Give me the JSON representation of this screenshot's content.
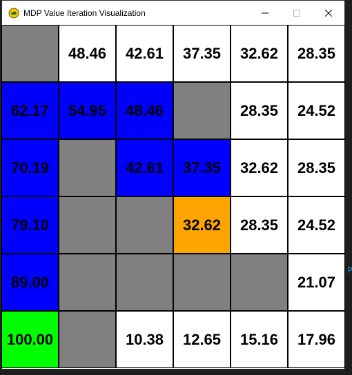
{
  "window": {
    "title": "MDP Value Iteration Visualization",
    "icon": "python-snake-icon"
  },
  "caption_buttons": [
    "minimize",
    "maximize",
    "close"
  ],
  "colors": {
    "wall": "#808080",
    "empty": "#ffffff",
    "path": "#0000ff",
    "goal": "#00ff00",
    "agent": "#ffa500"
  },
  "grid": {
    "rows": [
      [
        {
          "type": "wall",
          "value": ""
        },
        {
          "type": "empty",
          "value": "48.46"
        },
        {
          "type": "empty",
          "value": "42.61"
        },
        {
          "type": "empty",
          "value": "37.35"
        },
        {
          "type": "empty",
          "value": "32.62"
        },
        {
          "type": "empty",
          "value": "28.35"
        }
      ],
      [
        {
          "type": "path",
          "value": "62.17"
        },
        {
          "type": "path",
          "value": "54.95"
        },
        {
          "type": "path",
          "value": "48.46"
        },
        {
          "type": "wall",
          "value": ""
        },
        {
          "type": "empty",
          "value": "28.35"
        },
        {
          "type": "empty",
          "value": "24.52"
        }
      ],
      [
        {
          "type": "path",
          "value": "70.19"
        },
        {
          "type": "wall",
          "value": ""
        },
        {
          "type": "path",
          "value": "42.61"
        },
        {
          "type": "path",
          "value": "37.35"
        },
        {
          "type": "empty",
          "value": "32.62"
        },
        {
          "type": "empty",
          "value": "28.35"
        }
      ],
      [
        {
          "type": "path",
          "value": "79.10"
        },
        {
          "type": "wall",
          "value": ""
        },
        {
          "type": "wall",
          "value": ""
        },
        {
          "type": "agent",
          "value": "32.62"
        },
        {
          "type": "empty",
          "value": "28.35"
        },
        {
          "type": "empty",
          "value": "24.52"
        }
      ],
      [
        {
          "type": "path",
          "value": "89.00"
        },
        {
          "type": "wall",
          "value": ""
        },
        {
          "type": "wall",
          "value": ""
        },
        {
          "type": "wall",
          "value": ""
        },
        {
          "type": "wall",
          "value": ""
        },
        {
          "type": "empty",
          "value": "21.07"
        }
      ],
      [
        {
          "type": "goal",
          "value": "100.00"
        },
        {
          "type": "wall",
          "value": ""
        },
        {
          "type": "empty",
          "value": "10.38"
        },
        {
          "type": "empty",
          "value": "12.65"
        },
        {
          "type": "empty",
          "value": "15.16"
        },
        {
          "type": "empty",
          "value": "17.96"
        }
      ]
    ]
  },
  "background_fragment": "p"
}
